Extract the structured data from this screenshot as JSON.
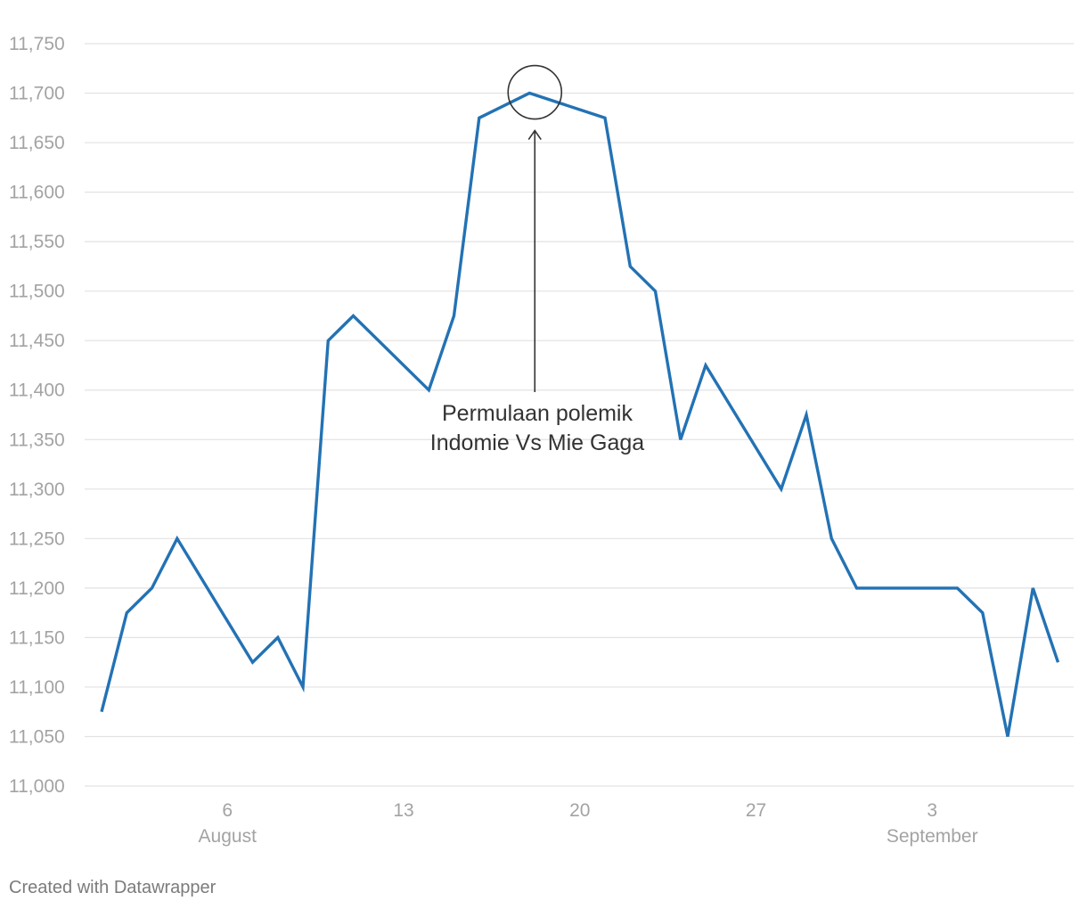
{
  "chart_data": {
    "type": "line",
    "title": "",
    "xlabel": "",
    "ylabel": "",
    "ylim": [
      11000,
      11750
    ],
    "y_ticks": [
      11000,
      11050,
      11100,
      11150,
      11200,
      11250,
      11300,
      11350,
      11400,
      11450,
      11500,
      11550,
      11600,
      11650,
      11700,
      11750
    ],
    "y_tick_labels": [
      "11,000",
      "11,050",
      "11,100",
      "11,150",
      "11,200",
      "11,250",
      "11,300",
      "11,350",
      "11,400",
      "11,450",
      "11,500",
      "11,550",
      "11,600",
      "11,650",
      "11,700",
      "11,750"
    ],
    "x_ticks": [
      {
        "date": "2019-08-06",
        "label": "6",
        "month_label": "August"
      },
      {
        "date": "2019-08-13",
        "label": "13",
        "month_label": ""
      },
      {
        "date": "2019-08-20",
        "label": "20",
        "month_label": ""
      },
      {
        "date": "2019-08-27",
        "label": "27",
        "month_label": ""
      },
      {
        "date": "2019-09-03",
        "label": "3",
        "month_label": "September"
      }
    ],
    "grid": true,
    "line_color": "#2372b4",
    "series": [
      {
        "points": [
          {
            "x": "2019-08-01",
            "y": 11075
          },
          {
            "x": "2019-08-02",
            "y": 11175
          },
          {
            "x": "2019-08-03",
            "y": 11200
          },
          {
            "x": "2019-08-04",
            "y": 11250
          },
          {
            "x": "2019-08-07",
            "y": 11125
          },
          {
            "x": "2019-08-08",
            "y": 11150
          },
          {
            "x": "2019-08-09",
            "y": 11100
          },
          {
            "x": "2019-08-10",
            "y": 11450
          },
          {
            "x": "2019-08-11",
            "y": 11475
          },
          {
            "x": "2019-08-14",
            "y": 11400
          },
          {
            "x": "2019-08-15",
            "y": 11475
          },
          {
            "x": "2019-08-16",
            "y": 11675
          },
          {
            "x": "2019-08-18",
            "y": 11700
          },
          {
            "x": "2019-08-21",
            "y": 11675
          },
          {
            "x": "2019-08-22",
            "y": 11525
          },
          {
            "x": "2019-08-23",
            "y": 11500
          },
          {
            "x": "2019-08-24",
            "y": 11350
          },
          {
            "x": "2019-08-25",
            "y": 11425
          },
          {
            "x": "2019-08-28",
            "y": 11300
          },
          {
            "x": "2019-08-29",
            "y": 11375
          },
          {
            "x": "2019-08-30",
            "y": 11250
          },
          {
            "x": "2019-08-31",
            "y": 11200
          },
          {
            "x": "2019-09-04",
            "y": 11200
          },
          {
            "x": "2019-09-05",
            "y": 11175
          },
          {
            "x": "2019-09-06",
            "y": 11050
          },
          {
            "x": "2019-09-07",
            "y": 11200
          },
          {
            "x": "2019-09-08",
            "y": 11125
          }
        ]
      }
    ],
    "annotation": {
      "target": {
        "x": "2019-08-18",
        "y": 11700
      },
      "lines": [
        "Permulaan polemik",
        "Indomie Vs Mie Gaga"
      ]
    }
  },
  "footer": {
    "credit": "Created with Datawrapper"
  }
}
